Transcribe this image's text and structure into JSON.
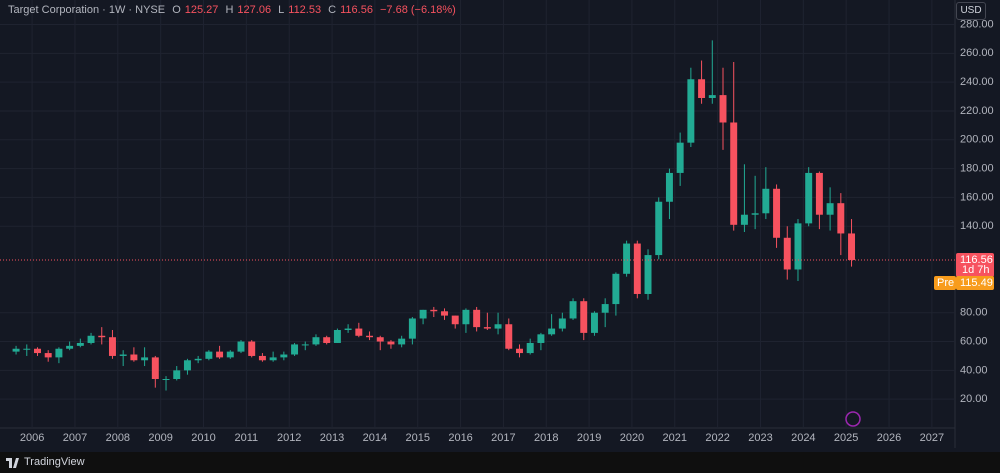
{
  "header": {
    "symbol": "Target Corporation · 1W · NYSE",
    "open_label": "O",
    "open": "125.27",
    "high_label": "H",
    "high": "127.06",
    "low_label": "L",
    "low": "112.53",
    "close_label": "C",
    "close": "116.56",
    "change": "−7.68 (−6.18%)",
    "currency": "USD"
  },
  "footer": {
    "brand": "TradingView"
  },
  "chart_data": {
    "type": "candlestick",
    "x": [
      2005.625,
      2005.875,
      2006.125,
      2006.375,
      2006.625,
      2006.875,
      2007.125,
      2007.375,
      2007.625,
      2007.875,
      2008.125,
      2008.375,
      2008.625,
      2008.875,
      2009.125,
      2009.375,
      2009.625,
      2009.875,
      2010.125,
      2010.375,
      2010.625,
      2010.875,
      2011.125,
      2011.375,
      2011.625,
      2011.875,
      2012.125,
      2012.375,
      2012.625,
      2012.875,
      2013.125,
      2013.375,
      2013.625,
      2013.875,
      2014.125,
      2014.375,
      2014.625,
      2014.875,
      2015.125,
      2015.375,
      2015.625,
      2015.875,
      2016.125,
      2016.375,
      2016.625,
      2016.875,
      2017.125,
      2017.375,
      2017.625,
      2017.875,
      2018.125,
      2018.375,
      2018.625,
      2018.875,
      2019.125,
      2019.375,
      2019.625,
      2019.875,
      2020.125,
      2020.375,
      2020.625,
      2020.875,
      2021.125,
      2021.375,
      2021.625,
      2021.875,
      2022.125,
      2022.375,
      2022.625,
      2022.875,
      2023.125,
      2023.375,
      2023.625,
      2023.875,
      2024.125,
      2024.375,
      2024.625,
      2024.875,
      2025.125
    ],
    "open": [
      53,
      55,
      55,
      52,
      49,
      55,
      57,
      59,
      64,
      63,
      50,
      51,
      47,
      49,
      34,
      34,
      40,
      47,
      48,
      53,
      49,
      53,
      60,
      50,
      47,
      49,
      51,
      58,
      58,
      63,
      59,
      68,
      69,
      64,
      63,
      60,
      58,
      62,
      76,
      82,
      81,
      78,
      72,
      82,
      70,
      69,
      72,
      55,
      52,
      59,
      65,
      69,
      76,
      88,
      66,
      80,
      86,
      107,
      128,
      93,
      120,
      157,
      177,
      198,
      242,
      229,
      231,
      212,
      141,
      148,
      149,
      166,
      132,
      110,
      142,
      177,
      148,
      156,
      135
    ],
    "high": [
      57,
      58,
      56,
      54,
      56,
      60,
      62,
      66,
      70,
      68,
      54,
      56,
      56,
      50,
      36,
      43,
      48,
      50,
      54,
      57,
      54,
      61,
      61,
      52,
      53,
      53,
      59,
      60,
      65,
      64,
      69,
      72,
      73,
      67,
      64,
      61,
      64,
      77,
      82,
      84,
      83,
      78,
      83,
      84,
      80,
      80,
      76,
      58,
      62,
      66,
      79,
      80,
      90,
      90,
      81,
      90,
      108,
      130,
      130,
      124,
      160,
      180,
      205,
      250,
      255,
      269,
      250,
      254,
      183,
      175,
      181,
      169,
      140,
      145,
      181,
      178,
      167,
      163,
      145
    ],
    "low": [
      51,
      50,
      50,
      46,
      45,
      54,
      56,
      58,
      58,
      48,
      43,
      46,
      43,
      28,
      26,
      33,
      37,
      45,
      47,
      48,
      48,
      52,
      49,
      46,
      46,
      47,
      50,
      54,
      57,
      58,
      59,
      66,
      63,
      61,
      54,
      55,
      56,
      58,
      72,
      77,
      75,
      69,
      66,
      67,
      68,
      65,
      54,
      49,
      51,
      54,
      64,
      67,
      75,
      61,
      64,
      70,
      78,
      105,
      90,
      89,
      117,
      145,
      168,
      195,
      225,
      225,
      193,
      137,
      136,
      138,
      145,
      125,
      103,
      102,
      140,
      138,
      137,
      120,
      112
    ],
    "close": [
      55,
      55,
      52,
      49,
      55,
      57,
      59,
      64,
      63,
      50,
      51,
      47,
      49,
      34,
      34,
      40,
      47,
      48,
      53,
      49,
      53,
      60,
      50,
      47,
      49,
      51,
      58,
      58,
      63,
      59,
      68,
      69,
      64,
      63,
      60,
      58,
      62,
      76,
      82,
      81,
      78,
      72,
      82,
      70,
      69,
      72,
      55,
      52,
      59,
      65,
      69,
      76,
      88,
      66,
      80,
      86,
      107,
      128,
      93,
      120,
      157,
      177,
      198,
      242,
      229,
      231,
      212,
      141,
      148,
      149,
      166,
      132,
      110,
      142,
      177,
      148,
      156,
      135,
      116.56
    ],
    "up_color": "#22ab94",
    "down_color": "#f7525f",
    "xlim": [
      2005.25,
      2027.54
    ],
    "xticks": [
      2006,
      2007,
      2008,
      2009,
      2010,
      2011,
      2012,
      2013,
      2014,
      2015,
      2016,
      2017,
      2018,
      2019,
      2020,
      2021,
      2022,
      2023,
      2024,
      2025,
      2026,
      2027
    ],
    "ylim": [
      0,
      297
    ],
    "yticks": [
      {
        "value": 20,
        "label": "20.00"
      },
      {
        "value": 40,
        "label": "40.00"
      },
      {
        "value": 60,
        "label": "60.00"
      },
      {
        "value": 80,
        "label": "80.00"
      },
      {
        "value": 140,
        "label": "140.00"
      },
      {
        "value": 160,
        "label": "160.00"
      },
      {
        "value": 180,
        "label": "180.00"
      },
      {
        "value": 200,
        "label": "200.00"
      },
      {
        "value": 220,
        "label": "220.00"
      },
      {
        "value": 240,
        "label": "240.00"
      },
      {
        "value": 260,
        "label": "260.00"
      },
      {
        "value": 280,
        "label": "280.00"
      }
    ],
    "grid": true,
    "last_price": 116.56,
    "countdown": "1d 7h",
    "premarket_label": "Pre",
    "premarket_price": 115.49
  }
}
